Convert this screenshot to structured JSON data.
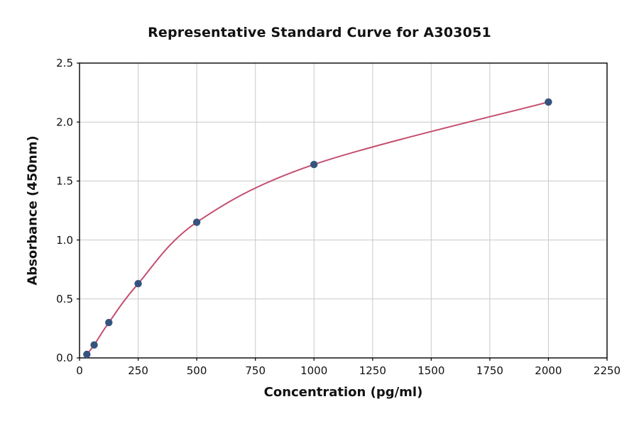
{
  "chart_data": {
    "type": "scatter",
    "title": "Representative Standard Curve for A303051",
    "xlabel": "Concentration (pg/ml)",
    "ylabel": "Absorbance (450nm)",
    "xlim": [
      0,
      2250
    ],
    "ylim": [
      0,
      2.5
    ],
    "x_ticks": [
      0,
      250,
      500,
      750,
      1000,
      1250,
      1500,
      1750,
      2000,
      2250
    ],
    "x_tick_labels": [
      "0",
      "250",
      "500",
      "750",
      "1000",
      "1250",
      "1500",
      "1750",
      "2000",
      "2250"
    ],
    "y_ticks": [
      0.0,
      0.5,
      1.0,
      1.5,
      2.0,
      2.5
    ],
    "y_tick_labels": [
      "0.0",
      "0.5",
      "1.0",
      "1.5",
      "2.0",
      "2.5"
    ],
    "grid": true,
    "grid_color": "#c9c9c9",
    "spine_color": "#000000",
    "legend": "none",
    "series": [
      {
        "name": "standard-points",
        "type": "scatter",
        "color": "#35547d",
        "x": [
          31.25,
          62.5,
          125,
          250,
          500,
          1000,
          2000
        ],
        "y": [
          0.03,
          0.11,
          0.3,
          0.63,
          1.15,
          1.64,
          2.17
        ]
      },
      {
        "name": "fitted-curve",
        "type": "line",
        "color": "#c44e6e"
      }
    ]
  }
}
